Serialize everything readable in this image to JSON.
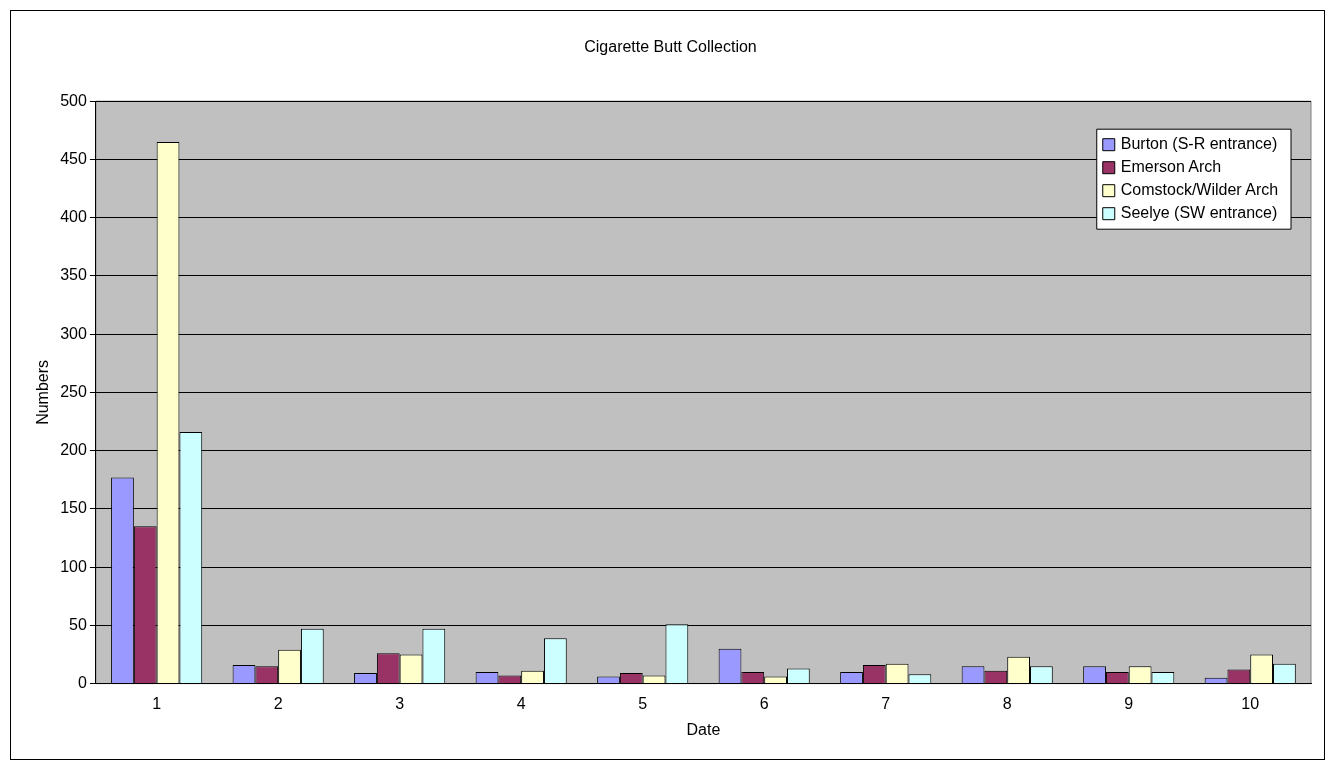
{
  "chart_data": {
    "type": "bar",
    "title": "Cigarette Butt Collection",
    "xlabel": "Date",
    "ylabel": "Numbers",
    "categories": [
      "1",
      "2",
      "3",
      "4",
      "5",
      "6",
      "7",
      "8",
      "9",
      "10"
    ],
    "series": [
      {
        "name": "Burton (S-R entrance)",
        "color": "#9999ff",
        "values": [
          177,
          16,
          9,
          10,
          6,
          30,
          10,
          15,
          15,
          5
        ]
      },
      {
        "name": "Emerson Arch",
        "color": "#993366",
        "values": [
          135,
          15,
          26,
          7,
          9,
          10,
          16,
          11,
          10,
          12
        ]
      },
      {
        "name": "Comstock/Wilder Arch",
        "color": "#ffffcc",
        "values": [
          465,
          29,
          25,
          11,
          7,
          6,
          17,
          23,
          15,
          25
        ]
      },
      {
        "name": "Seelye (SW entrance)",
        "color": "#ccffff",
        "values": [
          216,
          47,
          47,
          39,
          51,
          13,
          8,
          15,
          10,
          17
        ]
      }
    ],
    "ylim": [
      0,
      500
    ],
    "yticks": [
      0,
      50,
      100,
      150,
      200,
      250,
      300,
      350,
      400,
      450,
      500
    ],
    "grid": "y",
    "legend": "top right"
  }
}
